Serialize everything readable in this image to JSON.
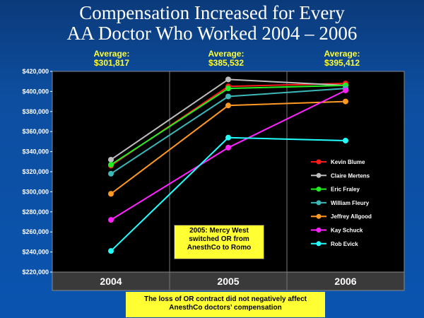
{
  "title": {
    "line1": "Compensation Increased for Every",
    "line2": "AA Doctor Who Worked 2004 – 2006"
  },
  "averages": [
    {
      "label": "Average:",
      "value": "$301,817"
    },
    {
      "label": "Average:",
      "value": "$385,532"
    },
    {
      "label": "Average:",
      "value": "$395,412"
    }
  ],
  "annotation": {
    "line1": "2005: Mercy West",
    "line2": "switched OR from",
    "line3": "AnesthCo to Romo"
  },
  "footnote": {
    "line1": "The loss of OR contract did not negatively affect",
    "line2": "AnesthCo doctors’ compensation"
  },
  "colors": {
    "background": "#0d4ea0",
    "plot_area": "#000000",
    "highlight": "#ffff33"
  },
  "chart_data": {
    "type": "line",
    "categories": [
      "2004",
      "2005",
      "2006"
    ],
    "ylim": [
      220000,
      420000
    ],
    "yticks": [
      {
        "value": 220000,
        "label": "$220,000"
      },
      {
        "value": 240000,
        "label": "$240,000"
      },
      {
        "value": 260000,
        "label": "$260,000"
      },
      {
        "value": 280000,
        "label": "$280,000"
      },
      {
        "value": 300000,
        "label": "$300,000"
      },
      {
        "value": 320000,
        "label": "$320,000"
      },
      {
        "value": 340000,
        "label": "$340,000"
      },
      {
        "value": 360000,
        "label": "$360,000"
      },
      {
        "value": 380000,
        "label": "$380,000"
      },
      {
        "value": 400000,
        "label": "$400,000"
      },
      {
        "value": 420000,
        "label": "$420,000"
      }
    ],
    "grid": "vertical",
    "legend": "right",
    "series": [
      {
        "name": "Kevin Blume",
        "color": "#ff1a1a",
        "values": [
          326000,
          405000,
          408000
        ]
      },
      {
        "name": "Claire Mertens",
        "color": "#bdbdbd",
        "values": [
          332000,
          412000,
          406000
        ]
      },
      {
        "name": "Eric Fraley",
        "color": "#22ee22",
        "values": [
          327000,
          403000,
          406000
        ]
      },
      {
        "name": "William Fleury",
        "color": "#3cb8b8",
        "values": [
          318000,
          395000,
          403000
        ]
      },
      {
        "name": "Jeffrey Allgood",
        "color": "#ff9922",
        "values": [
          298000,
          386000,
          390000
        ]
      },
      {
        "name": "Kay Schuck",
        "color": "#ff22ff",
        "values": [
          272000,
          344000,
          401000
        ]
      },
      {
        "name": "Rob Evick",
        "color": "#22ffff",
        "values": [
          241000,
          354000,
          351000
        ]
      }
    ]
  }
}
